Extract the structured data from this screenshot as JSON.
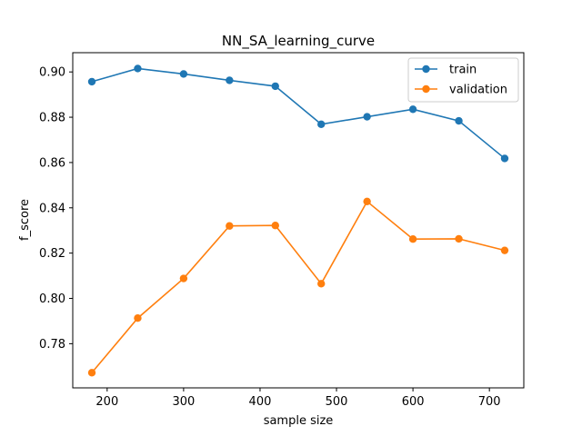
{
  "chart_data": {
    "type": "line",
    "title": "NN_SA_learning_curve",
    "xlabel": "sample size",
    "ylabel": "f_score",
    "xlim": [
      155,
      745
    ],
    "ylim": [
      0.7605,
      0.9085
    ],
    "xticks": [
      200,
      300,
      400,
      500,
      600,
      700
    ],
    "yticks": [
      0.78,
      0.8,
      0.82,
      0.84,
      0.86,
      0.88,
      0.9
    ],
    "yticks_labels": [
      "0.78",
      "0.80",
      "0.82",
      "0.84",
      "0.86",
      "0.88",
      "0.90"
    ],
    "grid": false,
    "legend_position": "upper right",
    "x": [
      180,
      240,
      300,
      360,
      420,
      480,
      540,
      600,
      660,
      720
    ],
    "series": [
      {
        "name": "train",
        "color": "#1f77b4",
        "values": [
          0.8957,
          0.9015,
          0.8991,
          0.8963,
          0.8937,
          0.8769,
          0.8802,
          0.8835,
          0.8784,
          0.8618
        ]
      },
      {
        "name": "validation",
        "color": "#ff7f0e",
        "values": [
          0.7672,
          0.7913,
          0.8088,
          0.832,
          0.8322,
          0.8065,
          0.8428,
          0.8262,
          0.8263,
          0.8212
        ]
      }
    ]
  }
}
